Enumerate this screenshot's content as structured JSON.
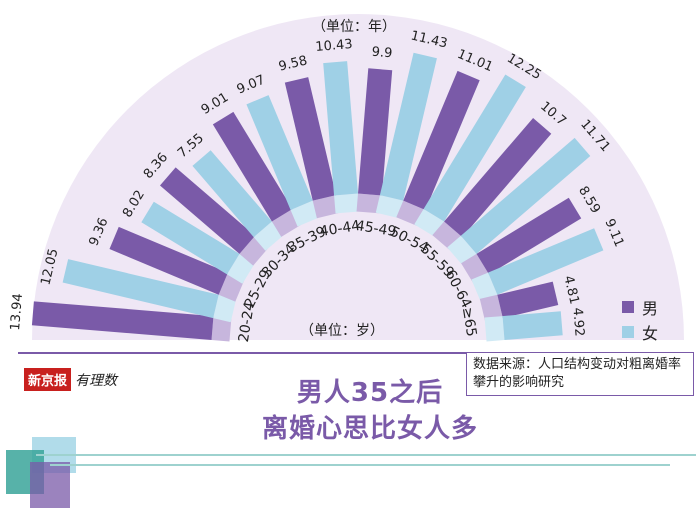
{
  "colors": {
    "male": "#7a5aa8",
    "female": "#9fd0e6",
    "fan_bg": "#efe7f5",
    "male_light": "#c7b6dd",
    "female_light": "#d1eaf5",
    "accent": "#7a5aa8"
  },
  "chart_data": {
    "type": "bar",
    "layout": "radial-fan",
    "unit_top": "（单位：年）",
    "unit_bottom": "（单位：岁）",
    "categories": [
      "20-24",
      "25-29",
      "30-34",
      "35-39",
      "40-44",
      "45-49",
      "50-54",
      "55-59",
      "60-64",
      "≥65"
    ],
    "series": [
      {
        "name": "男",
        "values": [
          13.94,
          9.36,
          8.36,
          9.01,
          9.58,
          9.9,
          11.01,
          10.7,
          8.59,
          4.81
        ]
      },
      {
        "name": "女",
        "values": [
          12.05,
          8.02,
          7.55,
          9.07,
          10.43,
          11.43,
          12.25,
          11.71,
          9.11,
          4.92
        ]
      }
    ],
    "value_labels": {
      "male": [
        "13.94",
        "9.36",
        "8.36",
        "9.01",
        "9.58",
        "9.9",
        "11.01",
        "10.7",
        "8.59",
        "4.81"
      ],
      "female": [
        "12.05",
        "8.02",
        "7.55",
        "9.07",
        "10.43",
        "11.43",
        "12.25",
        "11.71",
        "9.11",
        "4.92"
      ]
    },
    "legend": [
      "男",
      "女"
    ],
    "legend_position": "bottom-right"
  },
  "headline": {
    "line1": "男人35之后",
    "line2": "离婚心思比女人多"
  },
  "source": "数据来源：人口结构变动对粗离婚率攀升的影响研究",
  "brand": {
    "logo": "新京报",
    "sub": "有理数"
  }
}
